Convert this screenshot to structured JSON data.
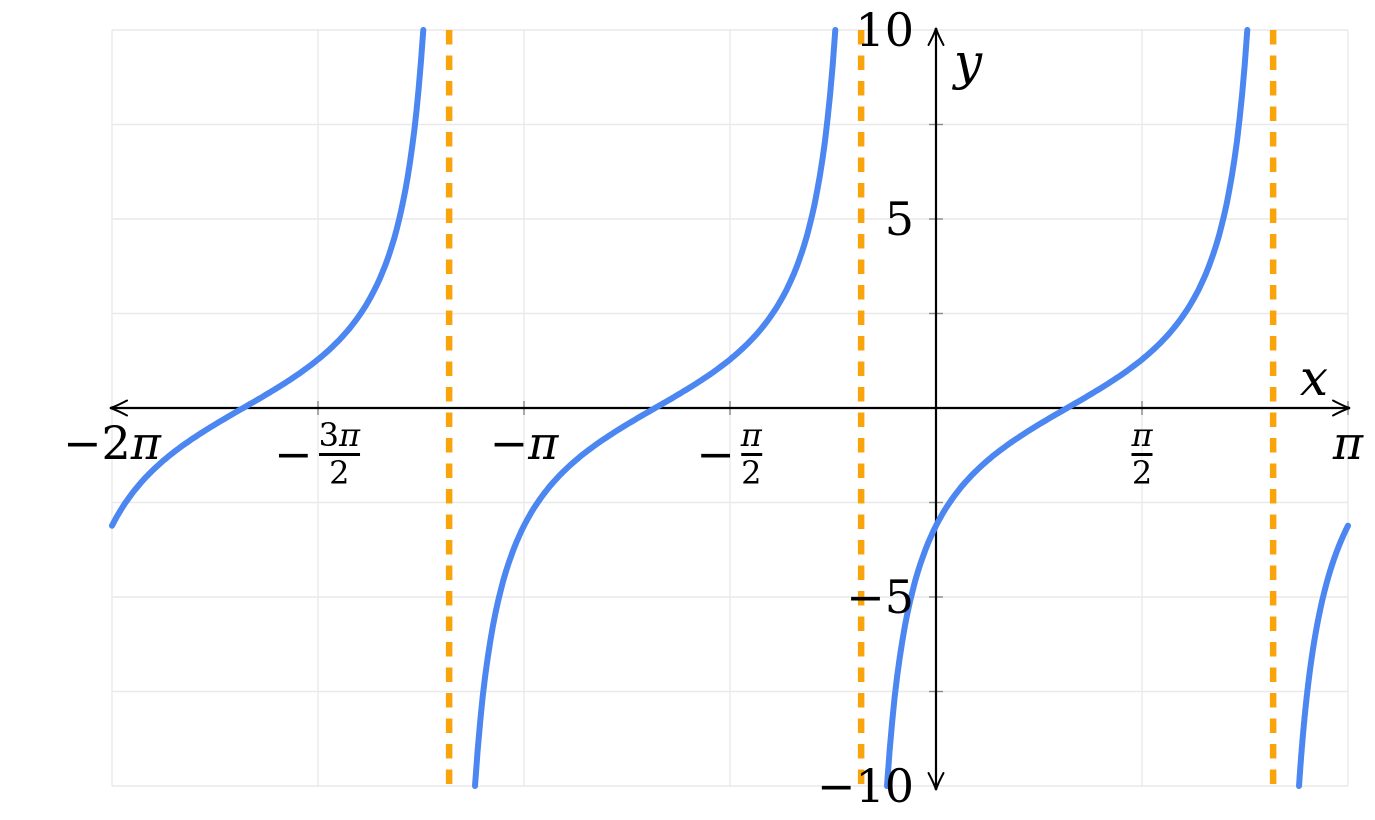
{
  "chart_data": {
    "type": "line",
    "title": "",
    "xlabel": "x",
    "ylabel": "y",
    "function": {
      "expression": "y = 2·tan(x − 1)",
      "kind": "tan",
      "amplitude": 2,
      "phase": 1,
      "period_rad": 3.14159265
    },
    "x_range": [
      -6.28318531,
      3.14159265
    ],
    "y_range": [
      -10,
      10
    ],
    "zeros_x": [
      -5.28318531,
      -2.14159265,
      1.0
    ],
    "asymptotes": {
      "style": "dashed",
      "x_values": [
        -3.71238898,
        -0.57079633,
        2.57079633
      ]
    },
    "x_ticks": [
      {
        "value": -6.28318531,
        "label": "−2π"
      },
      {
        "value": -4.71238898,
        "minus": "−",
        "num": "3π",
        "den": "2"
      },
      {
        "value": -3.14159265,
        "label": "−π"
      },
      {
        "value": -1.57079633,
        "minus": "−",
        "num": "π",
        "den": "2"
      },
      {
        "value": 1.57079633,
        "num": "π",
        "den": "2"
      },
      {
        "value": 3.14159265,
        "label": "π"
      }
    ],
    "y_ticks_labeled": [
      {
        "value": 10,
        "label": "10"
      },
      {
        "value": 5,
        "label": "5"
      },
      {
        "value": -5,
        "label": "−5"
      },
      {
        "value": -10,
        "label": "−10"
      }
    ],
    "y_minor_tick_step": 2.5,
    "grid": {
      "vertical_at": "x tick positions (multiples of π/2)",
      "horizontal_step": 2.5,
      "visible": true
    },
    "legend": {
      "visible": false
    },
    "colors": {
      "curve": "#4C86F0",
      "asymptote": "#FAA40C",
      "grid": "#E9E9E9",
      "axis": "#000000",
      "tick": "#8A8A8A"
    }
  }
}
